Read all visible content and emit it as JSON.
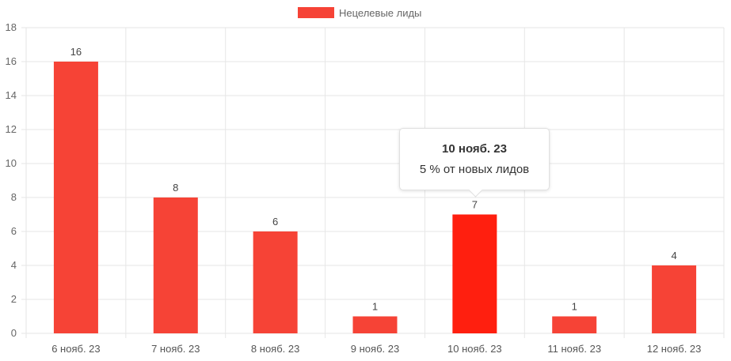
{
  "chart_data": {
    "type": "bar",
    "categories": [
      "6 нояб. 23",
      "7 нояб. 23",
      "8 нояб. 23",
      "9 нояб. 23",
      "10 нояб. 23",
      "11 нояб. 23",
      "12 нояб. 23"
    ],
    "series": [
      {
        "name": "Нецелевые лиды",
        "values": [
          16,
          8,
          6,
          1,
          7,
          1,
          4
        ]
      }
    ],
    "yticks": [
      "0",
      "2",
      "4",
      "6",
      "8",
      "10",
      "12",
      "14",
      "16",
      "18"
    ],
    "ylim": [
      0,
      18
    ],
    "grid": true,
    "legend": "top-center",
    "colors": {
      "bar": "#f64336",
      "bar_active": "#ff1f0f"
    },
    "title": "",
    "xlabel": "",
    "ylabel": ""
  },
  "tooltip": {
    "title": "10 нояб. 23",
    "body": "5 % от новых лидов",
    "category_index": 4
  }
}
